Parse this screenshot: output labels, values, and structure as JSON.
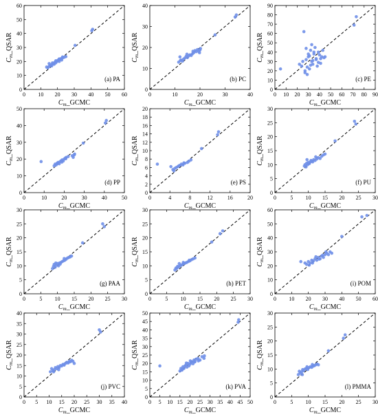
{
  "figure": {
    "point_color": "#6f8fe8",
    "axis_color": "#000000"
  },
  "chart_data": [
    {
      "type": "scatter",
      "panel_label": "(a) PA",
      "xlabel": "C_m_GCMC",
      "ylabel": "C_m_QSAR",
      "xlim": [
        0,
        60
      ],
      "ylim": [
        0,
        60
      ],
      "xticks": [
        0,
        10,
        20,
        30,
        40,
        50,
        60
      ],
      "yticks": [
        0,
        10,
        20,
        30,
        40,
        50,
        60
      ],
      "reference_line": "y = x (dashed)",
      "x": [
        13.5,
        14.2,
        15,
        15.5,
        16,
        16.5,
        17,
        17.5,
        18,
        18.5,
        19,
        19.5,
        20,
        20.5,
        21,
        21.5,
        22,
        22.5,
        23,
        24,
        25,
        15,
        17,
        19,
        21,
        23,
        30.5,
        40.5,
        41
      ],
      "y": [
        16,
        15.5,
        16.5,
        17,
        17.5,
        16.8,
        18,
        18.5,
        18,
        19.5,
        19,
        20,
        20.5,
        21,
        20,
        21.5,
        22,
        21,
        22.5,
        23,
        23.5,
        18.5,
        19,
        20.5,
        21.8,
        23.2,
        31.5,
        42,
        43
      ]
    },
    {
      "type": "scatter",
      "panel_label": "(b) PC",
      "xlabel": "C_m_GCMC",
      "ylabel": "C_m_QSAR",
      "xlim": [
        0,
        40
      ],
      "ylim": [
        0,
        40
      ],
      "xticks": [
        0,
        10,
        20,
        30,
        40
      ],
      "yticks": [
        0,
        10,
        20,
        30,
        40
      ],
      "reference_line": "y = x (dashed)",
      "x": [
        11.5,
        12,
        12.5,
        13,
        13.5,
        14,
        14.5,
        15,
        15.5,
        16,
        16.5,
        17,
        17.5,
        18,
        18.5,
        19,
        19.5,
        20,
        20.2,
        12.2,
        14.8,
        17.2,
        19.8,
        26,
        34,
        34.5
      ],
      "y": [
        13,
        15.5,
        14,
        13.5,
        14.5,
        15,
        15.8,
        15.2,
        16,
        16.5,
        16.2,
        17,
        17.5,
        18.5,
        18,
        19,
        18.2,
        18.8,
        19.5,
        13.8,
        16.8,
        18.2,
        17.5,
        26,
        34.5,
        35.5
      ]
    },
    {
      "type": "scatter",
      "panel_label": "(c) PE",
      "xlabel": "C_m_GCMC",
      "ylabel": "C_m_QSAR",
      "xlim": [
        0,
        90
      ],
      "ylim": [
        0,
        90
      ],
      "xticks": [
        0,
        10,
        20,
        30,
        40,
        50,
        60,
        70,
        80,
        90
      ],
      "yticks": [
        0,
        10,
        20,
        30,
        40,
        50,
        60,
        70,
        80,
        90
      ],
      "reference_line": "y = x (dashed)",
      "x": [
        5,
        22,
        24,
        25,
        26,
        27,
        28,
        29,
        30,
        31,
        32,
        33,
        34,
        35,
        36,
        37,
        38,
        39,
        40,
        41,
        42,
        43,
        27,
        29,
        31,
        33,
        35,
        37,
        39,
        28,
        30,
        44,
        45,
        71,
        73,
        32,
        34,
        41
      ],
      "y": [
        22,
        27,
        25,
        30,
        62,
        20,
        32,
        16,
        35,
        22,
        42,
        30,
        27,
        38,
        45,
        33,
        25,
        40,
        37,
        28,
        35,
        42,
        18,
        24,
        36,
        48,
        40,
        32,
        29,
        44,
        38,
        34,
        35,
        69,
        78,
        26,
        31,
        33
      ]
    },
    {
      "type": "scatter",
      "panel_label": "(d) PP",
      "xlabel": "C_m_GCMC",
      "ylabel": "C_m_QSAR",
      "xlim": [
        0,
        50
      ],
      "ylim": [
        0,
        50
      ],
      "xticks": [
        0,
        10,
        20,
        30,
        40,
        50
      ],
      "yticks": [
        0,
        10,
        20,
        30,
        40,
        50
      ],
      "reference_line": "y = x (dashed)",
      "x": [
        8.5,
        15,
        15.5,
        16,
        16.5,
        17,
        17.5,
        18,
        18.5,
        19,
        19.5,
        20,
        20.5,
        21,
        22,
        24,
        24.5,
        25,
        25.2,
        16.8,
        18.8,
        20.8,
        29.5,
        40.5,
        41
      ],
      "y": [
        18.5,
        16,
        17,
        16.5,
        17.5,
        18,
        17.2,
        18.5,
        19,
        19.5,
        18.8,
        20,
        20.5,
        21,
        21.5,
        22,
        21,
        22.5,
        23,
        17.8,
        18.2,
        20.2,
        29.5,
        41.5,
        43
      ]
    },
    {
      "type": "scatter",
      "panel_label": "(e) PS",
      "xlabel": "C_m_GCMC",
      "ylabel": "C_m_QSAR",
      "xlim": [
        0,
        20
      ],
      "ylim": [
        0,
        20
      ],
      "xticks": [
        0,
        4,
        8,
        12,
        16,
        20
      ],
      "yticks": [
        0,
        2,
        4,
        6,
        8,
        10,
        12,
        14,
        16,
        18,
        20
      ],
      "reference_line": "y = x (dashed)",
      "x": [
        1.5,
        4.2,
        4.6,
        5,
        5.3,
        5.6,
        6,
        6.3,
        6.6,
        7,
        7.5,
        7.8,
        8.2,
        4.8,
        5.8,
        6.8,
        10.3,
        13.5,
        13.7
      ],
      "y": [
        6.8,
        6.2,
        5.5,
        5.8,
        6,
        6.2,
        6.5,
        6.8,
        6.6,
        7,
        7.2,
        7.5,
        7.8,
        5.2,
        6.4,
        7.1,
        10.5,
        13.8,
        14.5
      ]
    },
    {
      "type": "scatter",
      "panel_label": "(f) PU",
      "xlabel": "C_m_GCMC",
      "ylabel": "C_m_QSAR",
      "xlim": [
        0,
        30
      ],
      "ylim": [
        0,
        30
      ],
      "xticks": [
        0,
        5,
        10,
        15,
        20,
        25,
        30
      ],
      "yticks": [
        0,
        5,
        10,
        15,
        20,
        25,
        30
      ],
      "reference_line": "y = x (dashed)",
      "x": [
        8.8,
        9,
        9.3,
        9.5,
        9.8,
        10,
        10.3,
        10.6,
        11,
        11.3,
        11.6,
        12,
        12.5,
        13,
        13.5,
        14,
        14.5,
        15,
        9.6,
        10.8,
        12.2,
        18,
        23.8,
        24.2
      ],
      "y": [
        9.5,
        10,
        9.2,
        10.5,
        10,
        10.8,
        10.4,
        11,
        11.2,
        11,
        11.8,
        11.5,
        12,
        12.5,
        12.2,
        13,
        13.5,
        13.8,
        11.8,
        11.5,
        12.8,
        18.5,
        25.5,
        24.5
      ]
    },
    {
      "type": "scatter",
      "panel_label": "(g) PAA",
      "xlabel": "C_m_GCMC",
      "ylabel": "C_m_QSAR",
      "xlim": [
        0,
        30
      ],
      "ylim": [
        0,
        30
      ],
      "xticks": [
        0,
        5,
        10,
        15,
        20,
        25,
        30
      ],
      "yticks": [
        0,
        5,
        10,
        15,
        20,
        25,
        30
      ],
      "reference_line": "y = x (dashed)",
      "x": [
        8.5,
        8.8,
        9,
        9.3,
        9.6,
        10,
        10.3,
        10.6,
        11,
        11.4,
        11.8,
        12.2,
        12.6,
        13,
        13.4,
        13.8,
        14.2,
        9.5,
        10.8,
        12,
        17.5,
        23.5,
        24
      ],
      "y": [
        9,
        9.8,
        10.5,
        9.5,
        10.2,
        10.8,
        10,
        11,
        11.2,
        11.5,
        11.8,
        12,
        12.4,
        12.8,
        13,
        13.2,
        13.5,
        11,
        10.6,
        12.6,
        18.2,
        25,
        24
      ]
    },
    {
      "type": "scatter",
      "panel_label": "(h) PET",
      "xlabel": "C_m_GCMC",
      "ylabel": "C_m_QSAR",
      "xlim": [
        0,
        30
      ],
      "ylim": [
        0,
        30
      ],
      "xticks": [
        0,
        5,
        10,
        15,
        20,
        25,
        30
      ],
      "yticks": [
        0,
        5,
        10,
        15,
        20,
        25,
        30
      ],
      "reference_line": "y = x (dashed)",
      "x": [
        7.5,
        7.8,
        8,
        8.3,
        8.6,
        9,
        9.4,
        9.8,
        10.2,
        10.6,
        11,
        11.5,
        12,
        12.5,
        13,
        13.5,
        8.8,
        10,
        11.8,
        18.5,
        21,
        21.8
      ],
      "y": [
        8.5,
        9.2,
        9,
        9.8,
        9.5,
        10,
        10.2,
        10.5,
        10.8,
        11,
        11.2,
        11.5,
        11.8,
        12.2,
        12.5,
        12.8,
        10.8,
        11.2,
        12,
        18.5,
        21.5,
        22.5
      ]
    },
    {
      "type": "scatter",
      "panel_label": "(i) POM",
      "xlabel": "C_m_GCMC",
      "ylabel": "C_m_QSAR",
      "xlim": [
        0,
        60
      ],
      "ylim": [
        0,
        60
      ],
      "xticks": [
        0,
        10,
        20,
        30,
        40,
        50,
        60
      ],
      "yticks": [
        0,
        10,
        20,
        30,
        40,
        50,
        60
      ],
      "reference_line": "y = x (dashed)",
      "x": [
        15.5,
        18,
        19,
        20,
        21,
        22,
        23,
        24,
        25,
        26,
        27,
        28,
        29,
        30,
        31,
        32,
        33,
        34,
        20.5,
        22.5,
        24.5,
        26.5,
        28.5,
        30.5,
        40,
        52,
        55
      ],
      "y": [
        23,
        22,
        21,
        23,
        22,
        24,
        23.5,
        25,
        24,
        26,
        25,
        27,
        26,
        28,
        29,
        28,
        30,
        29,
        20.5,
        22,
        26.5,
        24.8,
        27.5,
        30,
        41,
        55,
        56
      ]
    },
    {
      "type": "scatter",
      "panel_label": "(j) PVC",
      "xlabel": "C_m_GCMC",
      "ylabel": "C_m_QSAR",
      "xlim": [
        0,
        40
      ],
      "ylim": [
        0,
        40
      ],
      "xticks": [
        0,
        5,
        10,
        15,
        20,
        25,
        30,
        35,
        40
      ],
      "yticks": [
        0,
        5,
        10,
        15,
        20,
        25,
        30,
        35,
        40
      ],
      "reference_line": "y = x (dashed)",
      "x": [
        10.5,
        11,
        11.5,
        12,
        12.5,
        13,
        13.5,
        14,
        14.5,
        15,
        15.5,
        16,
        16.5,
        17,
        17.5,
        18,
        18.5,
        19,
        19.5,
        11.8,
        13.8,
        15.8,
        17.8,
        20,
        30,
        30.5
      ],
      "y": [
        12,
        13.5,
        12.5,
        13,
        14,
        13.5,
        14.5,
        14,
        15,
        14.8,
        15.5,
        15.2,
        16,
        16.5,
        16.2,
        17,
        16.8,
        17.5,
        17,
        12,
        13,
        15.5,
        16.5,
        16,
        32,
        31
      ]
    },
    {
      "type": "scatter",
      "panel_label": "(k) PVA",
      "xlabel": "C_m_GCMC",
      "ylabel": "C_m_QSAR",
      "xlim": [
        0,
        50
      ],
      "ylim": [
        0,
        50
      ],
      "xticks": [
        0,
        5,
        10,
        15,
        20,
        25,
        30,
        35,
        40,
        45,
        50
      ],
      "yticks": [
        0,
        5,
        10,
        15,
        20,
        25,
        30,
        35,
        40,
        45,
        50
      ],
      "reference_line": "y = x (dashed)",
      "x": [
        5,
        15,
        15.5,
        16,
        16.5,
        17,
        17.5,
        18,
        18.5,
        19,
        19.5,
        20,
        20.5,
        21,
        21.5,
        22,
        22.5,
        23,
        24,
        25,
        26,
        27,
        27.2,
        16.2,
        18.2,
        20.2,
        22.2,
        24.2,
        44,
        44.3
      ],
      "y": [
        18.5,
        15.5,
        17,
        16,
        18,
        17,
        18.5,
        19,
        17.8,
        20,
        18.5,
        19.5,
        20.5,
        21,
        19.8,
        22,
        21,
        22.5,
        23,
        22,
        24,
        23,
        24.5,
        16.5,
        20.2,
        21.5,
        20.8,
        21.5,
        44.5,
        46
      ]
    },
    {
      "type": "scatter",
      "panel_label": "(l) PMMA",
      "xlabel": "C_m_GCMC",
      "ylabel": "C_m_QSAR",
      "xlim": [
        0,
        30
      ],
      "ylim": [
        0,
        30
      ],
      "xticks": [
        0,
        5,
        10,
        15,
        20,
        25,
        30
      ],
      "yticks": [
        0,
        5,
        10,
        15,
        20,
        25,
        30
      ],
      "reference_line": "y = x (dashed)",
      "x": [
        7,
        7.3,
        7.6,
        8,
        8.3,
        8.6,
        9,
        9.4,
        9.8,
        10.2,
        10.6,
        11,
        11.4,
        11.8,
        12.2,
        12.6,
        13,
        8.2,
        9.6,
        11.2,
        16,
        20.5,
        21
      ],
      "y": [
        8,
        9.2,
        8.5,
        9,
        9.8,
        9.4,
        10,
        10.2,
        9.8,
        10.5,
        10.8,
        10.6,
        11,
        11.2,
        11.5,
        11.8,
        11.5,
        8,
        10.8,
        11.6,
        16.5,
        21,
        22.2
      ]
    }
  ]
}
